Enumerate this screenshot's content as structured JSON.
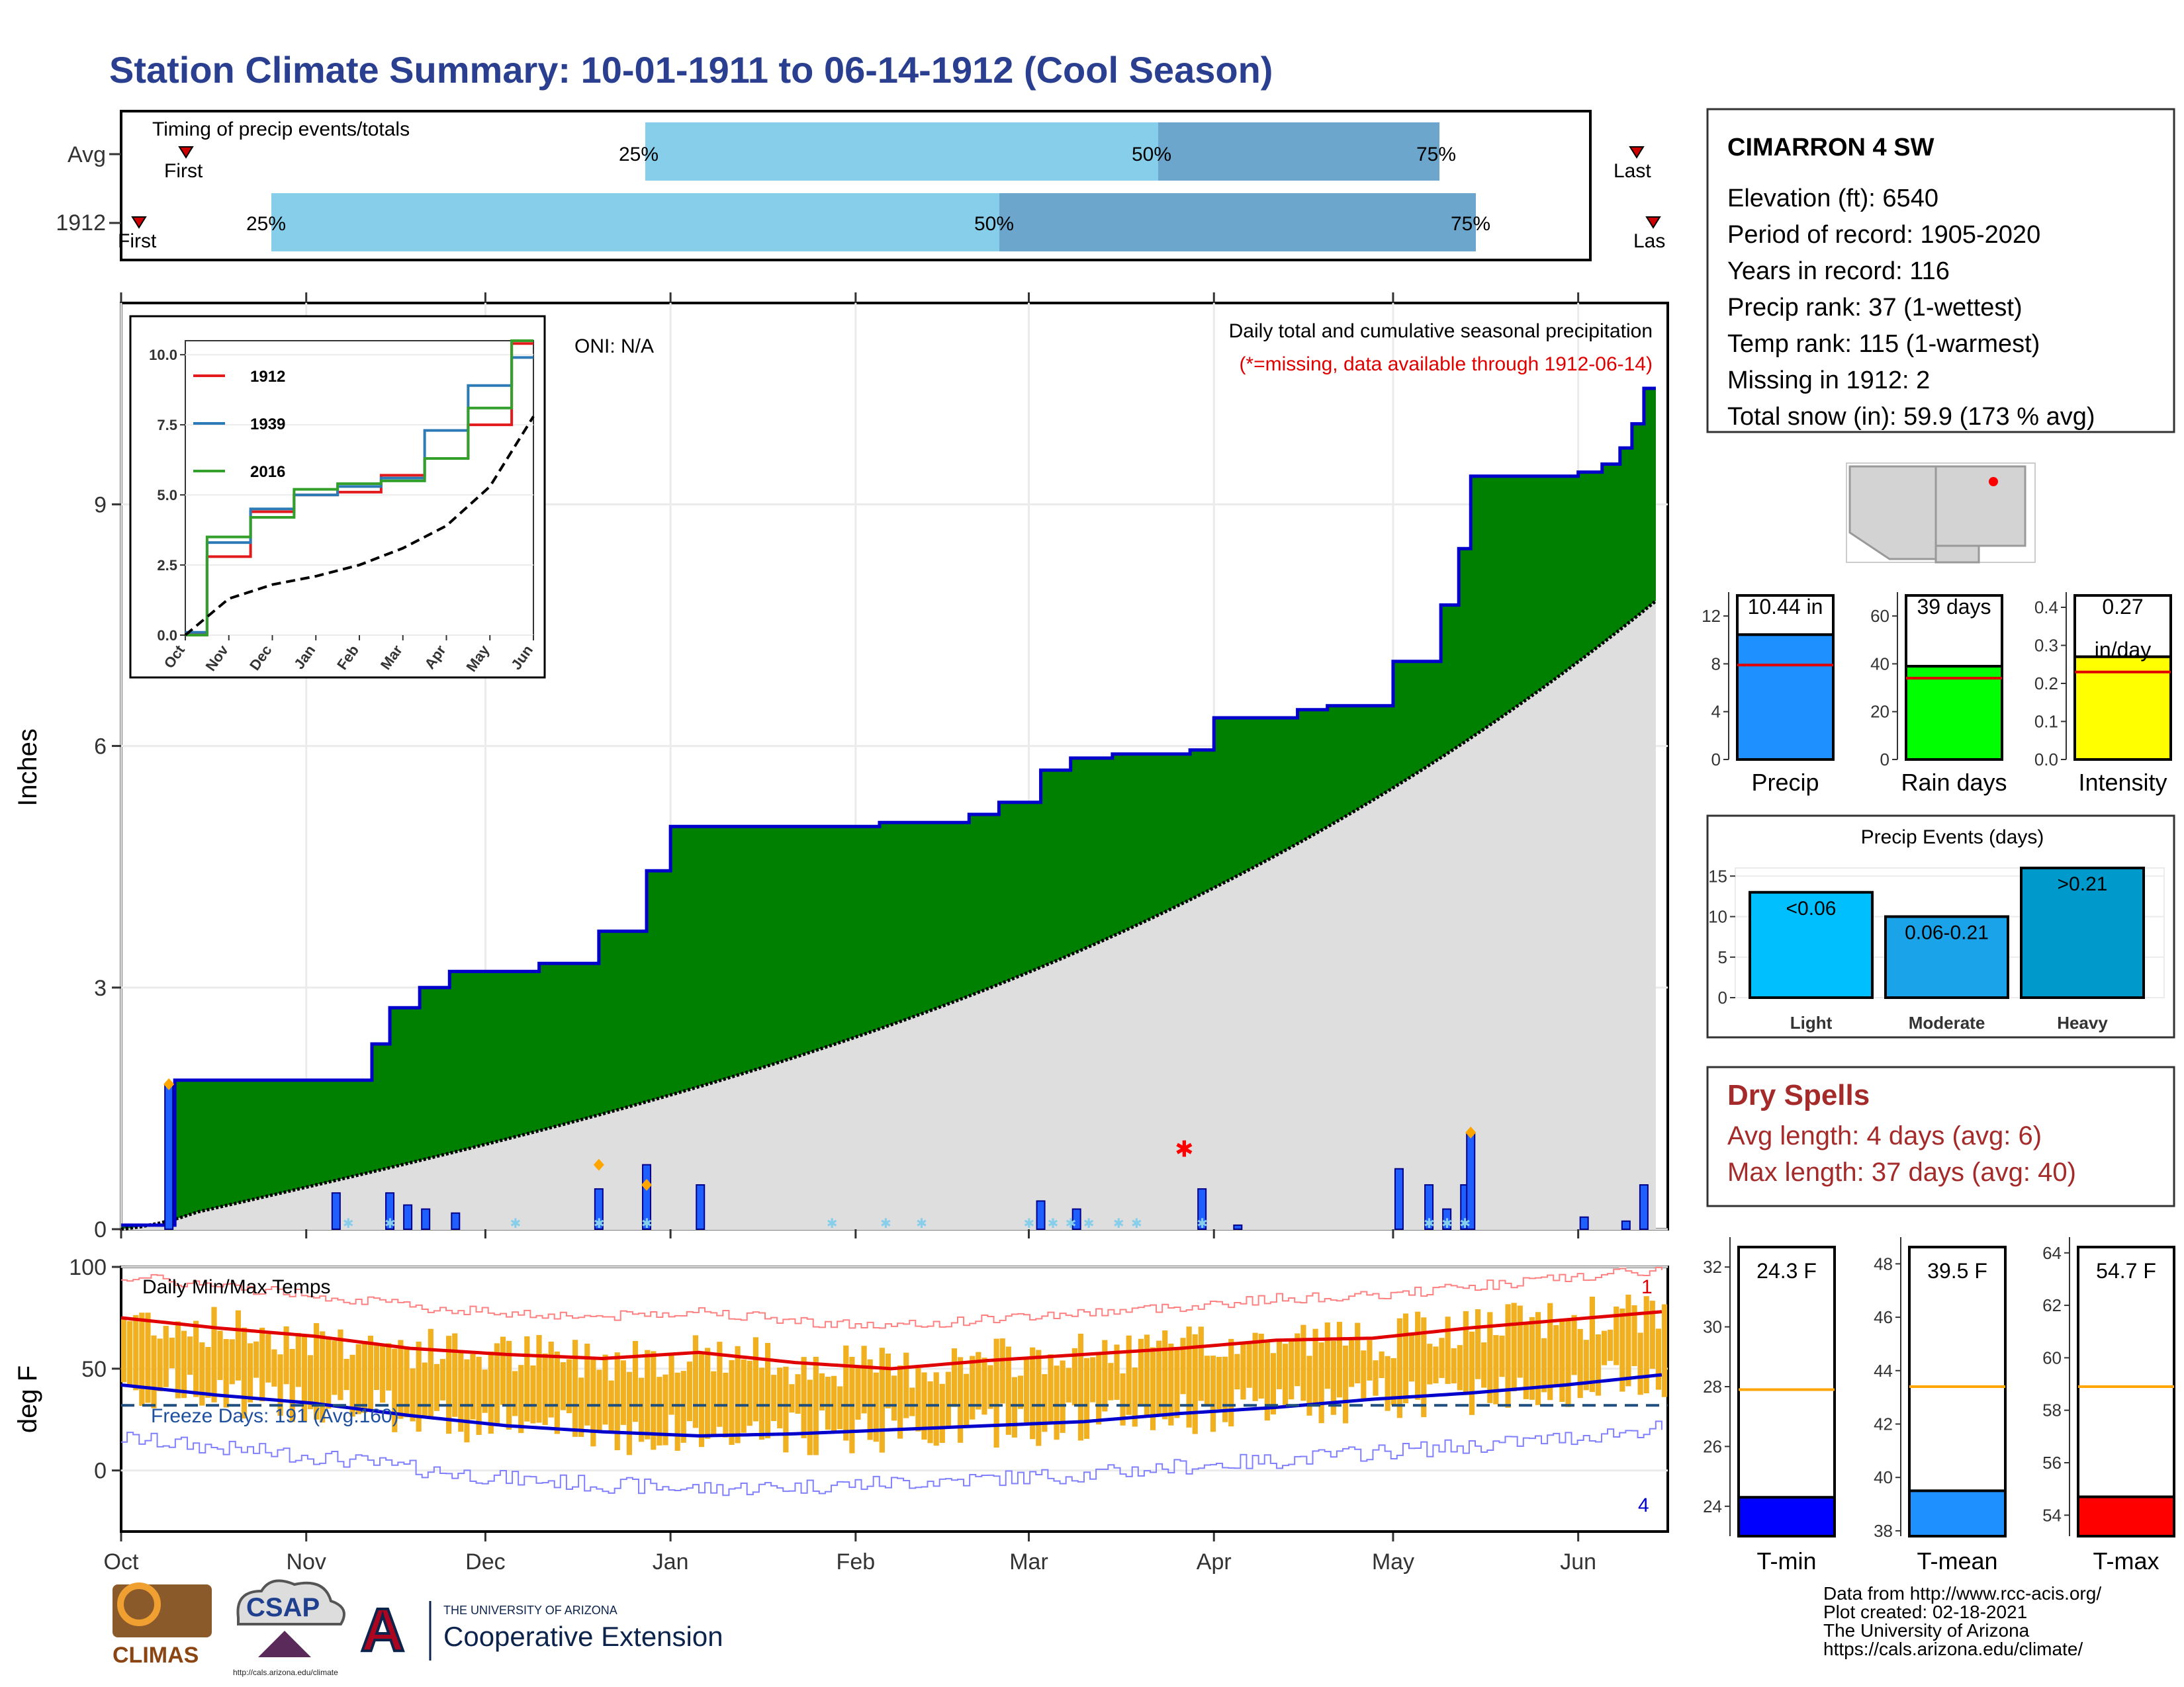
{
  "title": "Station Climate Summary: 10-01-1911 to 06-14-1912 (Cool Season)",
  "timing_panel": {
    "label": "Timing of precip events/totals",
    "rows": [
      {
        "name": "Avg",
        "first_label": "First",
        "last_label": "Last",
        "q25": "25%",
        "q50": "50%",
        "q75": "75%"
      },
      {
        "name": "1912",
        "first_label": "First",
        "last_label": "Las",
        "q25": "25%",
        "q50": "50%",
        "q75": "75%"
      }
    ]
  },
  "station_info": {
    "name": "CIMARRON 4 SW",
    "lines": [
      "Elevation (ft): 6540",
      "Period of record: 1905-2020",
      "Years in record: 116",
      "Precip rank: 37 (1-wettest)",
      "Temp rank: 115 (1-warmest)",
      "Missing in 1912: 2",
      "Total snow (in): 59.9 (173 % avg)"
    ]
  },
  "precip_panel": {
    "ylabel": "Inches",
    "oni": "ONI: N/A",
    "subtitle": "Daily total and cumulative seasonal precipitation",
    "missing_note": "(*=missing, data available through 1912-06-14)",
    "yticks": [
      "0",
      "3",
      "6",
      "9"
    ],
    "months": [
      "Oct",
      "Nov",
      "Dec",
      "Jan",
      "Feb",
      "Mar",
      "Apr",
      "May",
      "Jun"
    ]
  },
  "inset": {
    "legend": [
      "1912",
      "1939",
      "2016"
    ],
    "yticks": [
      "0.0",
      "2.5",
      "5.0",
      "7.5",
      "10.0"
    ],
    "months": [
      "Oct",
      "Nov",
      "Dec",
      "Jan",
      "Feb",
      "Mar",
      "Apr",
      "May",
      "Jun"
    ]
  },
  "temp_panel": {
    "ylabel": "deg F",
    "label": "Daily Min/Max Temps",
    "freeze": "Freeze Days: 191 (Avg:160)",
    "yticks": [
      "0",
      "50",
      "100"
    ],
    "corner_top": "1",
    "corner_bottom": "4"
  },
  "mini_bars": {
    "precip": {
      "value_label": "10.44 in",
      "label": "Precip",
      "yticks": [
        "0",
        "4",
        "8",
        "12"
      ]
    },
    "rain_days": {
      "value_label": "39 days",
      "label": "Rain days",
      "yticks": [
        "0",
        "20",
        "40",
        "60"
      ]
    },
    "intensity": {
      "value_label_1": "0.27",
      "value_label_2": "in/day",
      "label": "Intensity",
      "yticks": [
        "0.0",
        "0.1",
        "0.2",
        "0.3",
        "0.4"
      ]
    }
  },
  "precip_events": {
    "title": "Precip Events (days)",
    "yticks": [
      "0",
      "5",
      "10",
      "15"
    ],
    "bars": [
      {
        "category": "Light",
        "label": "<0.06"
      },
      {
        "category": "Moderate",
        "label": "0.06-0.21"
      },
      {
        "category": "Heavy",
        "label": ">0.21"
      }
    ]
  },
  "dry_spells": {
    "title": "Dry Spells",
    "avg": "Avg length: 4 days (avg: 6)",
    "max": "Max length: 37 days (avg: 40)"
  },
  "temp_bars": {
    "tmin": {
      "value_label": "24.3 F",
      "label": "T-min",
      "yticks": [
        "24",
        "26",
        "28",
        "30",
        "32"
      ]
    },
    "tmean": {
      "value_label": "39.5 F",
      "label": "T-mean",
      "yticks": [
        "38",
        "40",
        "42",
        "44",
        "46",
        "48"
      ]
    },
    "tmax": {
      "value_label": "54.7 F",
      "label": "T-max",
      "yticks": [
        "54",
        "56",
        "58",
        "60",
        "62",
        "64"
      ]
    }
  },
  "footer": {
    "lines": [
      "Data from http://www.rcc-acis.org/",
      "Plot created: 02-18-2021",
      "The University of Arizona",
      "https://cals.arizona.edu/climate/"
    ],
    "logos": {
      "climas": "CLIMAS",
      "csap": "CSAP",
      "csap_url": "http://cals.arizona.edu/climate",
      "ua_small": "THE UNIVERSITY OF ARIZONA",
      "ua_big": "Cooperative Extension"
    }
  },
  "colors": {
    "title": "#2a3f8f",
    "observed_fill": "#008000",
    "avg_fill": "#dedede",
    "cum_line": "#0000cc",
    "daily_bar": "#1f5fff",
    "q_light": "#87ceeb",
    "q_dark": "#6ca6cd",
    "temp_bar": "#f0b020",
    "tmax_line": "#e00000",
    "tmin_line": "#0000cc",
    "precip_bar": "#1e90ff",
    "rain_days_bar": "#00ff00",
    "intensity_bar": "#ffff00",
    "light_bar": "#00bfff",
    "moderate_bar": "#1aa3e8",
    "heavy_bar": "#0099cc",
    "dry_title": "#a52a2a",
    "tmin_bar": "#0000ff",
    "tmean_bar": "#1e90ff",
    "tmax_bar": "#ff0000",
    "avg_line": "#ffa500"
  },
  "chart_data": [
    {
      "type": "area",
      "name_hint": "cumulative precip",
      "x": [
        "1911-10-01",
        "1911-10-10",
        "1911-11-05",
        "1911-11-12",
        "1911-11-15",
        "1911-11-20",
        "1911-11-25",
        "1911-12-10",
        "1911-12-20",
        "1911-12-28",
        "1912-01-01",
        "1912-01-31",
        "1912-02-05",
        "1912-02-20",
        "1912-02-25",
        "1912-03-03",
        "1912-03-08",
        "1912-03-15",
        "1912-03-28",
        "1912-04-01",
        "1912-04-15",
        "1912-04-20",
        "1912-05-01",
        "1912-05-09",
        "1912-05-12",
        "1912-05-14",
        "1912-06-01",
        "1912-06-05",
        "1912-06-08",
        "1912-06-10",
        "1912-06-12",
        "1912-06-14"
      ],
      "cumulative_1912": [
        0.05,
        1.85,
        1.85,
        2.3,
        2.75,
        3.0,
        3.2,
        3.3,
        3.7,
        4.45,
        5.0,
        5.0,
        5.05,
        5.15,
        5.3,
        5.7,
        5.85,
        5.9,
        5.95,
        6.35,
        6.45,
        6.5,
        7.05,
        7.75,
        8.45,
        9.35,
        9.4,
        9.5,
        9.7,
        10.0,
        10.44,
        10.44
      ],
      "avg_cumulative_end": 7.8,
      "yticks": [
        0,
        3,
        6,
        9
      ],
      "ylim": [
        0,
        11.5
      ]
    },
    {
      "type": "line",
      "name_hint": "inset cumulative",
      "categories": [
        "Oct",
        "Nov",
        "Dec",
        "Jan",
        "Feb",
        "Mar",
        "Apr",
        "May",
        "Jun"
      ],
      "series": [
        {
          "name": "1912",
          "values": [
            0.05,
            2.8,
            4.4,
            5.0,
            5.1,
            5.7,
            6.3,
            7.5,
            10.4
          ]
        },
        {
          "name": "1939",
          "values": [
            0.1,
            3.3,
            4.5,
            5.0,
            5.3,
            5.6,
            7.3,
            8.9,
            9.9
          ]
        },
        {
          "name": "2016",
          "values": [
            0.0,
            3.5,
            4.2,
            5.2,
            5.4,
            5.5,
            6.3,
            8.1,
            10.5
          ]
        }
      ],
      "average": [
        0.0,
        1.3,
        1.8,
        2.1,
        2.5,
        3.1,
        3.9,
        5.3,
        7.8
      ],
      "ylim": [
        0,
        10.5
      ]
    },
    {
      "type": "bar",
      "name_hint": "daily temps",
      "series": [
        {
          "name": "T-max",
          "values": [
            75,
            70,
            66,
            60,
            57,
            55,
            58,
            53,
            50,
            54,
            57,
            60,
            64,
            65,
            70,
            74,
            78
          ]
        },
        {
          "name": "T-min",
          "values": [
            42,
            37,
            33,
            27,
            22,
            19,
            17,
            18,
            20,
            22,
            24,
            28,
            31,
            35,
            38,
            42,
            47
          ]
        }
      ],
      "freeze_line": 32,
      "ylim": [
        -30,
        100
      ]
    },
    {
      "type": "bar",
      "name_hint": "season totals",
      "categories": [
        "Precip",
        "Rain days",
        "Intensity"
      ],
      "values": [
        10.44,
        39,
        0.27
      ],
      "averages": [
        7.9,
        34,
        0.23
      ]
    },
    {
      "type": "bar",
      "title": "Precip Events (days)",
      "categories": [
        "Light",
        "Moderate",
        "Heavy"
      ],
      "values": [
        13,
        10,
        16
      ],
      "ylim": [
        0,
        16
      ]
    },
    {
      "type": "bar",
      "name_hint": "season temps",
      "categories": [
        "T-min",
        "T-mean",
        "T-max"
      ],
      "values": [
        24.3,
        39.5,
        54.7
      ],
      "averages": [
        27.9,
        43.4,
        58.9
      ]
    }
  ]
}
